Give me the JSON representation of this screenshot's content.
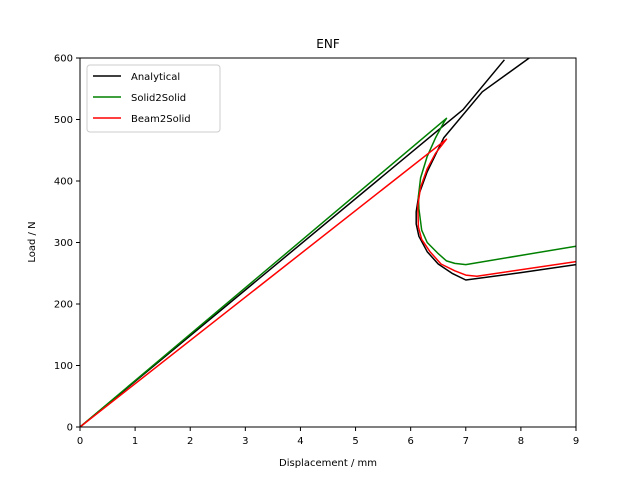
{
  "chart_data": {
    "type": "line",
    "title": "ENF",
    "xlabel": "Displacement / mm",
    "ylabel": "Load / N",
    "xlim": [
      0,
      9
    ],
    "ylim": [
      0,
      600
    ],
    "xticks": [
      0,
      1,
      2,
      3,
      4,
      5,
      6,
      7,
      8,
      9
    ],
    "yticks": [
      0,
      100,
      200,
      300,
      400,
      500,
      600
    ],
    "grid": false,
    "legend": "top-left",
    "series": [
      {
        "name": "Analytical",
        "color": "#000000",
        "segments": [
          [
            [
              0,
              0
            ],
            [
              6.6,
              490
            ],
            [
              6.95,
              516
            ],
            [
              7.7,
              597
            ]
          ],
          [
            [
              8.15,
              600
            ],
            [
              7.3,
              545
            ],
            [
              6.6,
              470
            ],
            [
              6.3,
              415
            ],
            [
              6.15,
              378
            ],
            [
              6.1,
              350
            ],
            [
              6.1,
              330
            ],
            [
              6.15,
              310
            ],
            [
              6.3,
              285
            ],
            [
              6.5,
              265
            ],
            [
              6.75,
              250
            ],
            [
              7.0,
              239
            ],
            [
              8.0,
              251
            ],
            [
              9.0,
              264
            ]
          ]
        ]
      },
      {
        "name": "Solid2Solid",
        "color": "#008000",
        "segments": [
          [
            [
              0,
              0
            ],
            [
              6.65,
              502
            ],
            [
              6.6,
              495
            ],
            [
              6.45,
              470
            ],
            [
              6.3,
              440
            ],
            [
              6.18,
              405
            ],
            [
              6.14,
              375
            ],
            [
              6.15,
              355
            ],
            [
              6.2,
              320
            ],
            [
              6.3,
              300
            ],
            [
              6.5,
              282
            ],
            [
              6.65,
              270
            ],
            [
              6.8,
              266
            ],
            [
              7.0,
              264
            ],
            [
              9.0,
              294
            ]
          ]
        ]
      },
      {
        "name": "Beam2Solid",
        "color": "#ff0000",
        "segments": [
          [
            [
              0,
              0
            ],
            [
              6.65,
              468
            ],
            [
              6.45,
              445
            ],
            [
              6.3,
              420
            ],
            [
              6.18,
              390
            ],
            [
              6.13,
              360
            ],
            [
              6.14,
              325
            ],
            [
              6.2,
              305
            ],
            [
              6.35,
              285
            ],
            [
              6.55,
              265
            ],
            [
              6.8,
              254
            ],
            [
              7.0,
              247
            ],
            [
              7.2,
              245
            ],
            [
              9.0,
              269
            ]
          ]
        ]
      }
    ]
  }
}
